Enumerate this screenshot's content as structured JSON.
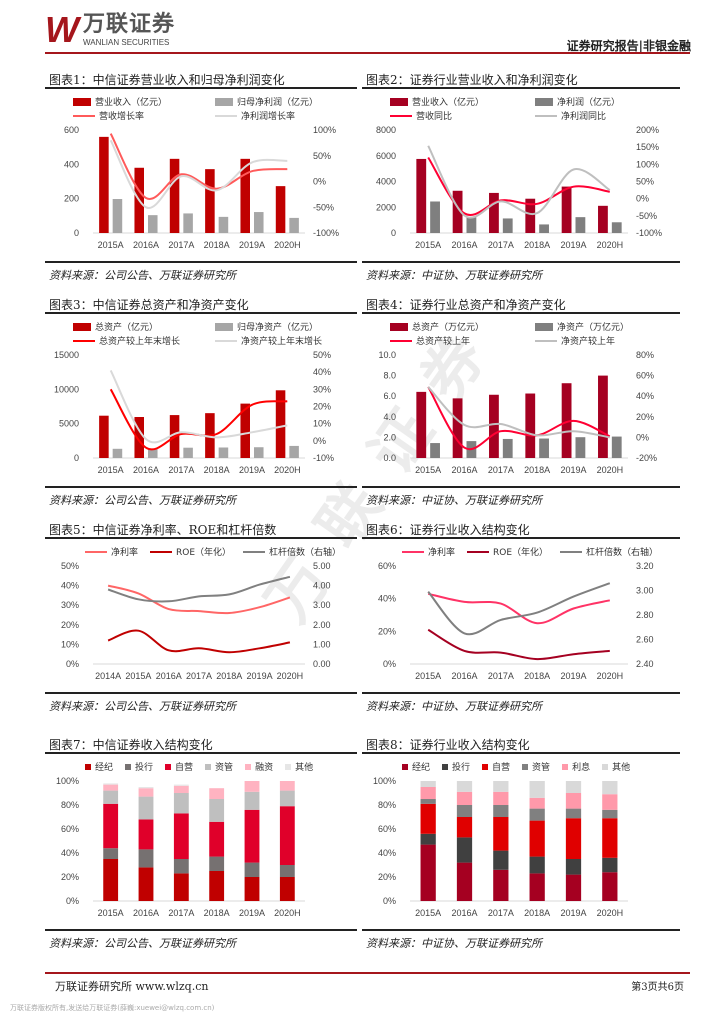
{
  "header": {
    "logo_cn": "万联证券",
    "logo_en": "WANLIAN SECURITIES",
    "logo_mark": "W",
    "report_type": "证券研究报告|非银金融"
  },
  "watermark": "万联证券",
  "footer": {
    "left": "万联证券研究所 www.wlzq.cn",
    "page": "第3页共6页",
    "copyright": "万联证券版权所有,发送给万联证券(薛巍:xuewei@wlzq.com.cn)"
  },
  "chart_data": [
    {
      "type": "bar",
      "title": "图表1：中信证券营业收入和归母净利润变化",
      "source": "资料来源：公司公告、万联证券研究所",
      "categories": [
        "2015A",
        "2016A",
        "2017A",
        "2018A",
        "2019A",
        "2020H"
      ],
      "y_left": {
        "min": 0,
        "max": 600,
        "ticks": [
          "0",
          "200",
          "400",
          "600"
        ]
      },
      "y_right": {
        "min": -1,
        "max": 1,
        "ticks": [
          "-100%",
          "-50%",
          "0%",
          "50%",
          "100%"
        ]
      },
      "bars": [
        {
          "name": "营业收入（亿元）",
          "color": "#c00000",
          "values": [
            560,
            380,
            432,
            372,
            432,
            273
          ]
        },
        {
          "name": "归母净利润（亿元）",
          "color": "#a6a6a6",
          "values": [
            198,
            104,
            114,
            94,
            122,
            88
          ]
        }
      ],
      "lines": [
        {
          "name": "营收增长率",
          "color": "#ff5a5a",
          "axis": "right",
          "values": [
            0.93,
            -0.32,
            0.14,
            -0.14,
            0.2,
            0.24
          ]
        },
        {
          "name": "净利润增长率",
          "color": "#d9d9d9",
          "axis": "right",
          "values": [
            0.8,
            -0.5,
            0.1,
            -0.17,
            0.37,
            0.4
          ]
        }
      ]
    },
    {
      "type": "bar",
      "title": "图表2：证券行业营业收入和净利润变化",
      "source": "资料来源：中证协、万联证券研究所",
      "categories": [
        "2015A",
        "2016A",
        "2017A",
        "2018A",
        "2019A",
        "2020H"
      ],
      "y_left": {
        "min": 0,
        "max": 8000,
        "ticks": [
          "0",
          "2000",
          "4000",
          "6000",
          "8000"
        ]
      },
      "y_right": {
        "min": -1,
        "max": 2,
        "ticks": [
          "-100%",
          "-50%",
          "0%",
          "50%",
          "100%",
          "150%",
          "200%"
        ]
      },
      "bars": [
        {
          "name": "营业收入（亿元）",
          "color": "#a50021",
          "values": [
            5752,
            3280,
            3113,
            2663,
            3605,
            2111
          ]
        },
        {
          "name": "净利润（亿元）",
          "color": "#7f7f7f",
          "values": [
            2447,
            1234,
            1130,
            666,
            1231,
            833
          ]
        }
      ],
      "lines": [
        {
          "name": "营收同比",
          "color": "#ff0033",
          "axis": "right",
          "values": [
            1.2,
            -0.43,
            -0.05,
            -0.15,
            0.35,
            0.2
          ]
        },
        {
          "name": "净利润同比",
          "color": "#bfbfbf",
          "axis": "right",
          "values": [
            1.54,
            -0.49,
            -0.08,
            -0.42,
            0.85,
            0.25
          ]
        }
      ]
    },
    {
      "type": "bar",
      "title": "图表3：中信证券总资产和净资产变化",
      "source": "资料来源：公司公告、万联证券研究所",
      "categories": [
        "2015A",
        "2016A",
        "2017A",
        "2018A",
        "2019A",
        "2020H"
      ],
      "y_left": {
        "min": 0,
        "max": 15000,
        "ticks": [
          "0",
          "5000",
          "10000",
          "15000"
        ]
      },
      "y_right": {
        "min": -0.1,
        "max": 0.5,
        "ticks": [
          "-10%",
          "0%",
          "10%",
          "20%",
          "30%",
          "40%",
          "50%"
        ]
      },
      "bars": [
        {
          "name": "总资产（亿元）",
          "color": "#c00000",
          "values": [
            6160,
            5970,
            6250,
            6530,
            7920,
            9860
          ]
        },
        {
          "name": "归母净资产（亿元）",
          "color": "#a6a6a6",
          "values": [
            1340,
            1330,
            1500,
            1530,
            1570,
            1760
          ]
        }
      ],
      "lines": [
        {
          "name": "总资产较上年末增长",
          "color": "#ff0000",
          "axis": "right",
          "values": [
            0.3,
            -0.04,
            0.04,
            0.04,
            0.21,
            0.23
          ]
        },
        {
          "name": "净资产较上年末增长",
          "color": "#d9d9d9",
          "axis": "right",
          "values": [
            0.41,
            0.01,
            0.05,
            0.02,
            0.05,
            0.09
          ]
        }
      ]
    },
    {
      "type": "bar",
      "title": "图表4：证券行业总资产和净资产变化",
      "source": "资料来源：中证协、万联证券研究所",
      "categories": [
        "2015A",
        "2016A",
        "2017A",
        "2018A",
        "2019A",
        "2020H"
      ],
      "y_left": {
        "min": 0,
        "max": 10,
        "ticks": [
          "0.0",
          "2.0",
          "4.0",
          "6.0",
          "8.0",
          "10.0"
        ]
      },
      "y_right": {
        "min": -0.2,
        "max": 0.8,
        "ticks": [
          "-20%",
          "0%",
          "20%",
          "40%",
          "60%",
          "80%"
        ]
      },
      "bars": [
        {
          "name": "总资产（万亿元）",
          "color": "#a50021",
          "values": [
            6.42,
            5.79,
            6.14,
            6.26,
            7.26,
            8.0
          ]
        },
        {
          "name": "净资产（万亿元）",
          "color": "#7f7f7f",
          "values": [
            1.45,
            1.64,
            1.85,
            1.89,
            2.02,
            2.08
          ]
        }
      ],
      "lines": [
        {
          "name": "总资产较上年",
          "color": "#ff0033",
          "axis": "right",
          "values": [
            0.49,
            -0.1,
            0.06,
            0.02,
            0.16,
            0.01
          ]
        },
        {
          "name": "净资产较上年",
          "color": "#bfbfbf",
          "axis": "right",
          "values": [
            0.49,
            0.12,
            0.13,
            0.02,
            0.06,
            0.0
          ]
        }
      ]
    },
    {
      "type": "line",
      "title": "图表5：中信证券净利率、ROE和杠杆倍数",
      "source": "资料来源：公司公告、万联证券研究所",
      "categories": [
        "2014A",
        "2015A",
        "2016A",
        "2017A",
        "2018A",
        "2019A",
        "2020H"
      ],
      "y_left": {
        "min": 0,
        "max": 0.5,
        "ticks": [
          "0%",
          "10%",
          "20%",
          "30%",
          "40%",
          "50%"
        ]
      },
      "y_right": {
        "min": 0,
        "max": 5,
        "ticks": [
          "0.00",
          "1.00",
          "2.00",
          "3.00",
          "4.00",
          "5.00"
        ]
      },
      "bars": [],
      "lines": [
        {
          "name": "净利率",
          "color": "#ff6666",
          "axis": "left",
          "values": [
            0.4,
            0.36,
            0.28,
            0.27,
            0.26,
            0.29,
            0.34
          ]
        },
        {
          "name": "ROE（年化）",
          "color": "#c00000",
          "axis": "left",
          "values": [
            0.12,
            0.17,
            0.07,
            0.08,
            0.06,
            0.08,
            0.11
          ]
        },
        {
          "name": "杠杆倍数（右轴）",
          "color": "#808080",
          "axis": "right",
          "values": [
            3.8,
            3.3,
            3.2,
            3.45,
            3.55,
            4.05,
            4.45
          ]
        }
      ]
    },
    {
      "type": "line",
      "title": "图表6：证券行业收入结构变化",
      "source": "资料来源：中证协、万联证券研究所",
      "categories": [
        "2015A",
        "2016A",
        "2017A",
        "2018A",
        "2019A",
        "2020H"
      ],
      "y_left": {
        "min": 0,
        "max": 0.6,
        "ticks": [
          "0%",
          "20%",
          "40%",
          "60%"
        ]
      },
      "y_right": {
        "min": 2.4,
        "max": 3.2,
        "ticks": [
          "2.40",
          "2.60",
          "2.80",
          "3.00",
          "3.20"
        ]
      },
      "bars": [],
      "lines": [
        {
          "name": "净利率",
          "color": "#ff3366",
          "axis": "left",
          "values": [
            0.43,
            0.38,
            0.37,
            0.25,
            0.34,
            0.39
          ]
        },
        {
          "name": "ROE（年化）",
          "color": "#a50021",
          "axis": "left",
          "values": [
            0.21,
            0.08,
            0.07,
            0.03,
            0.06,
            0.08
          ]
        },
        {
          "name": "杠杆倍数（右轴）",
          "color": "#808080",
          "axis": "right",
          "values": [
            2.99,
            2.65,
            2.76,
            2.82,
            2.95,
            3.06
          ]
        }
      ]
    },
    {
      "type": "bar",
      "stacked": true,
      "title": "图表7：中信证券收入结构变化",
      "source": "资料来源：公司公告、万联证券研究所",
      "categories": [
        "2015A",
        "2016A",
        "2017A",
        "2018A",
        "2019A",
        "2020H"
      ],
      "y_left": {
        "min": 0,
        "max": 100,
        "ticks": [
          "0%",
          "20%",
          "40%",
          "60%",
          "80%",
          "100%"
        ]
      },
      "bars": [
        {
          "name": "经纪",
          "color": "#c00000",
          "values": [
            35,
            28,
            23,
            25,
            20,
            20
          ]
        },
        {
          "name": "投行",
          "color": "#767171",
          "values": [
            9,
            15,
            12,
            12,
            12,
            10
          ]
        },
        {
          "name": "自营",
          "color": "#e0002a",
          "values": [
            37,
            25,
            38,
            29,
            44,
            49
          ]
        },
        {
          "name": "资管",
          "color": "#bfbfbf",
          "values": [
            11,
            19,
            17,
            19,
            15,
            13
          ]
        },
        {
          "name": "融资",
          "color": "#ffb3c1",
          "values": [
            5,
            7,
            6,
            9,
            9,
            8
          ]
        },
        {
          "name": "其他",
          "color": "#e6e6e6",
          "values": [
            1,
            1,
            1,
            0,
            0,
            0
          ]
        }
      ],
      "lines": []
    },
    {
      "type": "bar",
      "stacked": true,
      "title": "图表8：证券行业收入结构变化",
      "source": "资料来源：中证协、万联证券研究所",
      "categories": [
        "2015A",
        "2016A",
        "2017A",
        "2018A",
        "2019A",
        "2020H"
      ],
      "y_left": {
        "min": 0,
        "max": 100,
        "ticks": [
          "0%",
          "20%",
          "40%",
          "60%",
          "80%",
          "100%"
        ]
      },
      "bars": [
        {
          "name": "经纪",
          "color": "#a50021",
          "values": [
            47,
            32,
            26,
            23,
            22,
            24
          ]
        },
        {
          "name": "投行",
          "color": "#404040",
          "values": [
            9,
            21,
            16,
            14,
            13,
            12
          ]
        },
        {
          "name": "自营",
          "color": "#e00000",
          "values": [
            25,
            17,
            28,
            30,
            34,
            33
          ]
        },
        {
          "name": "资管",
          "color": "#808080",
          "values": [
            4,
            10,
            10,
            10,
            8,
            7
          ]
        },
        {
          "name": "利息",
          "color": "#ff99aa",
          "values": [
            10,
            11,
            11,
            9,
            13,
            13
          ]
        },
        {
          "name": "其他",
          "color": "#d9d9d9",
          "values": [
            5,
            9,
            9,
            14,
            10,
            11
          ]
        }
      ],
      "lines": []
    }
  ]
}
